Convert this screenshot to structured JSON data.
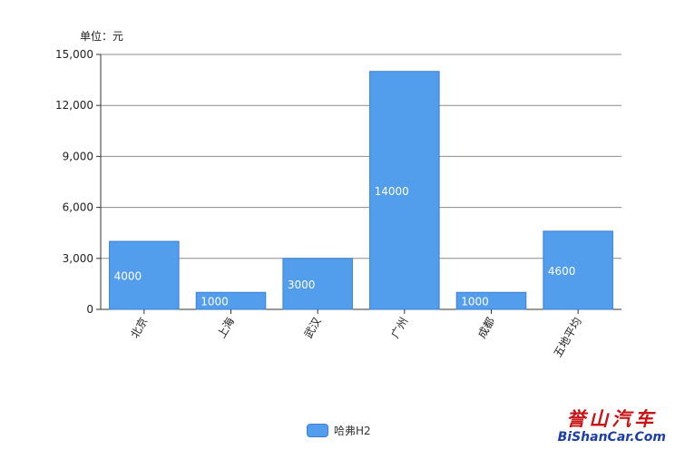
{
  "chart_data": {
    "type": "bar",
    "unit_label": "单位：元",
    "categories": [
      "北京",
      "上海",
      "武汉",
      "广州",
      "成都",
      "五地平均"
    ],
    "series": [
      {
        "name": "哈弗H2",
        "values": [
          4000,
          1000,
          3000,
          14000,
          1000,
          4600
        ]
      }
    ],
    "ylim": [
      0,
      15000
    ],
    "yticks": [
      "0",
      "3,000",
      "6,000",
      "9,000",
      "12,000",
      "15,000"
    ],
    "grid": true,
    "legend_position": "bottom-center",
    "bar_color": "#539ded",
    "bar_border": "#3a7fd6"
  },
  "watermark": {
    "cn": "誉山汽车",
    "en": "BiShanCar.Com"
  }
}
